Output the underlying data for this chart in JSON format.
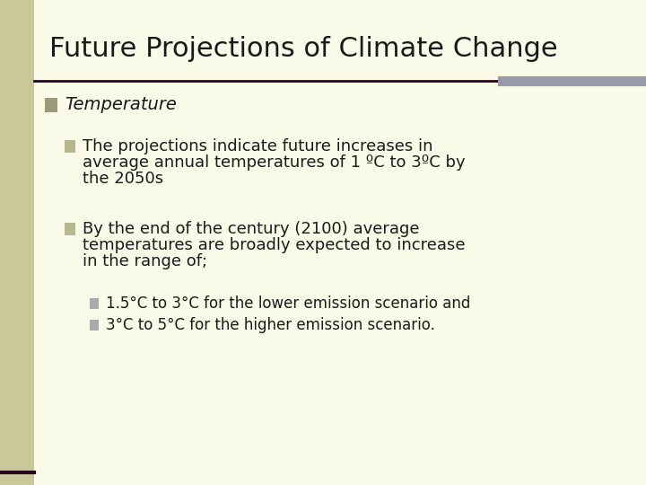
{
  "title": "Future Projections of Climate Change",
  "bg_color": "#FAFAE8",
  "left_bar_color": "#C8C898",
  "right_bar_color": "#9999AA",
  "divider_dark_color": "#2a0020",
  "title_color": "#1a1a1a",
  "title_font_size": 22,
  "bullet1_header": "Temperature",
  "bullet1_square_color": "#9A9A7A",
  "bullet2_square_color": "#B8B890",
  "bullet3_square_color": "#B8B890",
  "bullet4_square_color": "#AAAAAA",
  "bullet5_square_color": "#AAAAAA",
  "sub_bullet1_line1": "The projections indicate future increases in",
  "sub_bullet1_line2": "average annual temperatures of 1 ºC to 3ºC by",
  "sub_bullet1_line3": "the 2050s",
  "sub_bullet2_line1": "By the end of the century (2100) average",
  "sub_bullet2_line2": "temperatures are broadly expected to increase",
  "sub_bullet2_line3": "in the range of;",
  "sub_sub_bullet1": "1.5°C to 3°C for the lower emission scenario and",
  "sub_sub_bullet2": "3°C to 5°C for the higher emission scenario.",
  "text_color": "#1a1a1a",
  "font_size_title": 22,
  "font_size_l1": 14,
  "font_size_l2": 13,
  "font_size_l3": 12
}
